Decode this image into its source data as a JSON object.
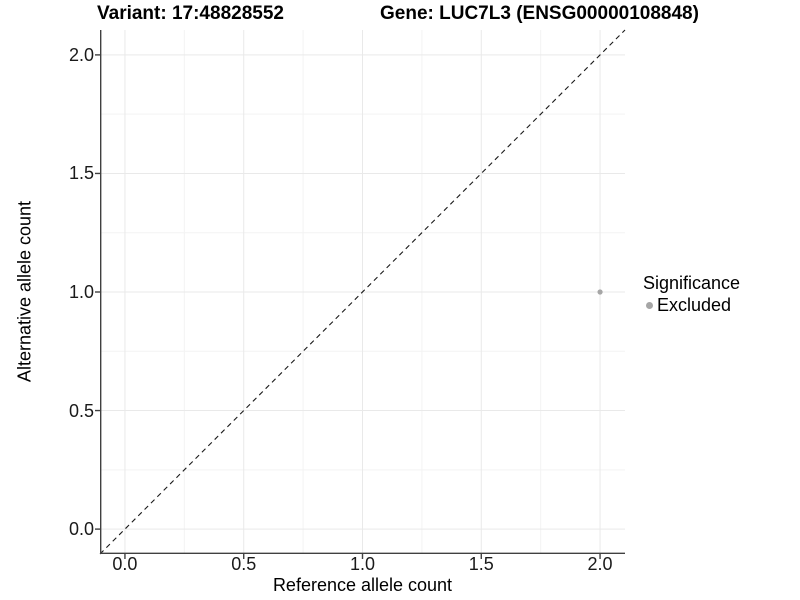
{
  "header": {
    "variant_title": "Variant: 17:48828552",
    "gene_title": "Gene: LUC7L3 (ENSG00000108848)"
  },
  "chart_data": {
    "type": "scatter",
    "xlabel": "Reference allele count",
    "ylabel": "Alternative allele count",
    "xlim": [
      -0.105,
      2.105
    ],
    "ylim": [
      -0.105,
      2.105
    ],
    "x_ticks": [
      0.0,
      0.5,
      1.0,
      1.5,
      2.0
    ],
    "y_ticks": [
      0.0,
      0.5,
      1.0,
      1.5,
      2.0
    ],
    "minor_tick_step": 0.25,
    "grid": true,
    "abline": {
      "slope": 1,
      "intercept": 0,
      "style": "dashed",
      "color": "#1a1a1a"
    },
    "series": [
      {
        "name": "Excluded",
        "color": "#a6a6a6",
        "points": [
          {
            "x": 2.0,
            "y": 1.0
          }
        ]
      }
    ],
    "legend": {
      "title": "Significance",
      "position": "right",
      "entries": [
        {
          "label": "Excluded",
          "color": "#a6a6a6"
        }
      ]
    },
    "colors": {
      "major_grid": "#e9e9e9",
      "minor_grid": "#f3f3f3",
      "axis_line": "#404040",
      "tick_text": "#1a1a1a"
    }
  }
}
